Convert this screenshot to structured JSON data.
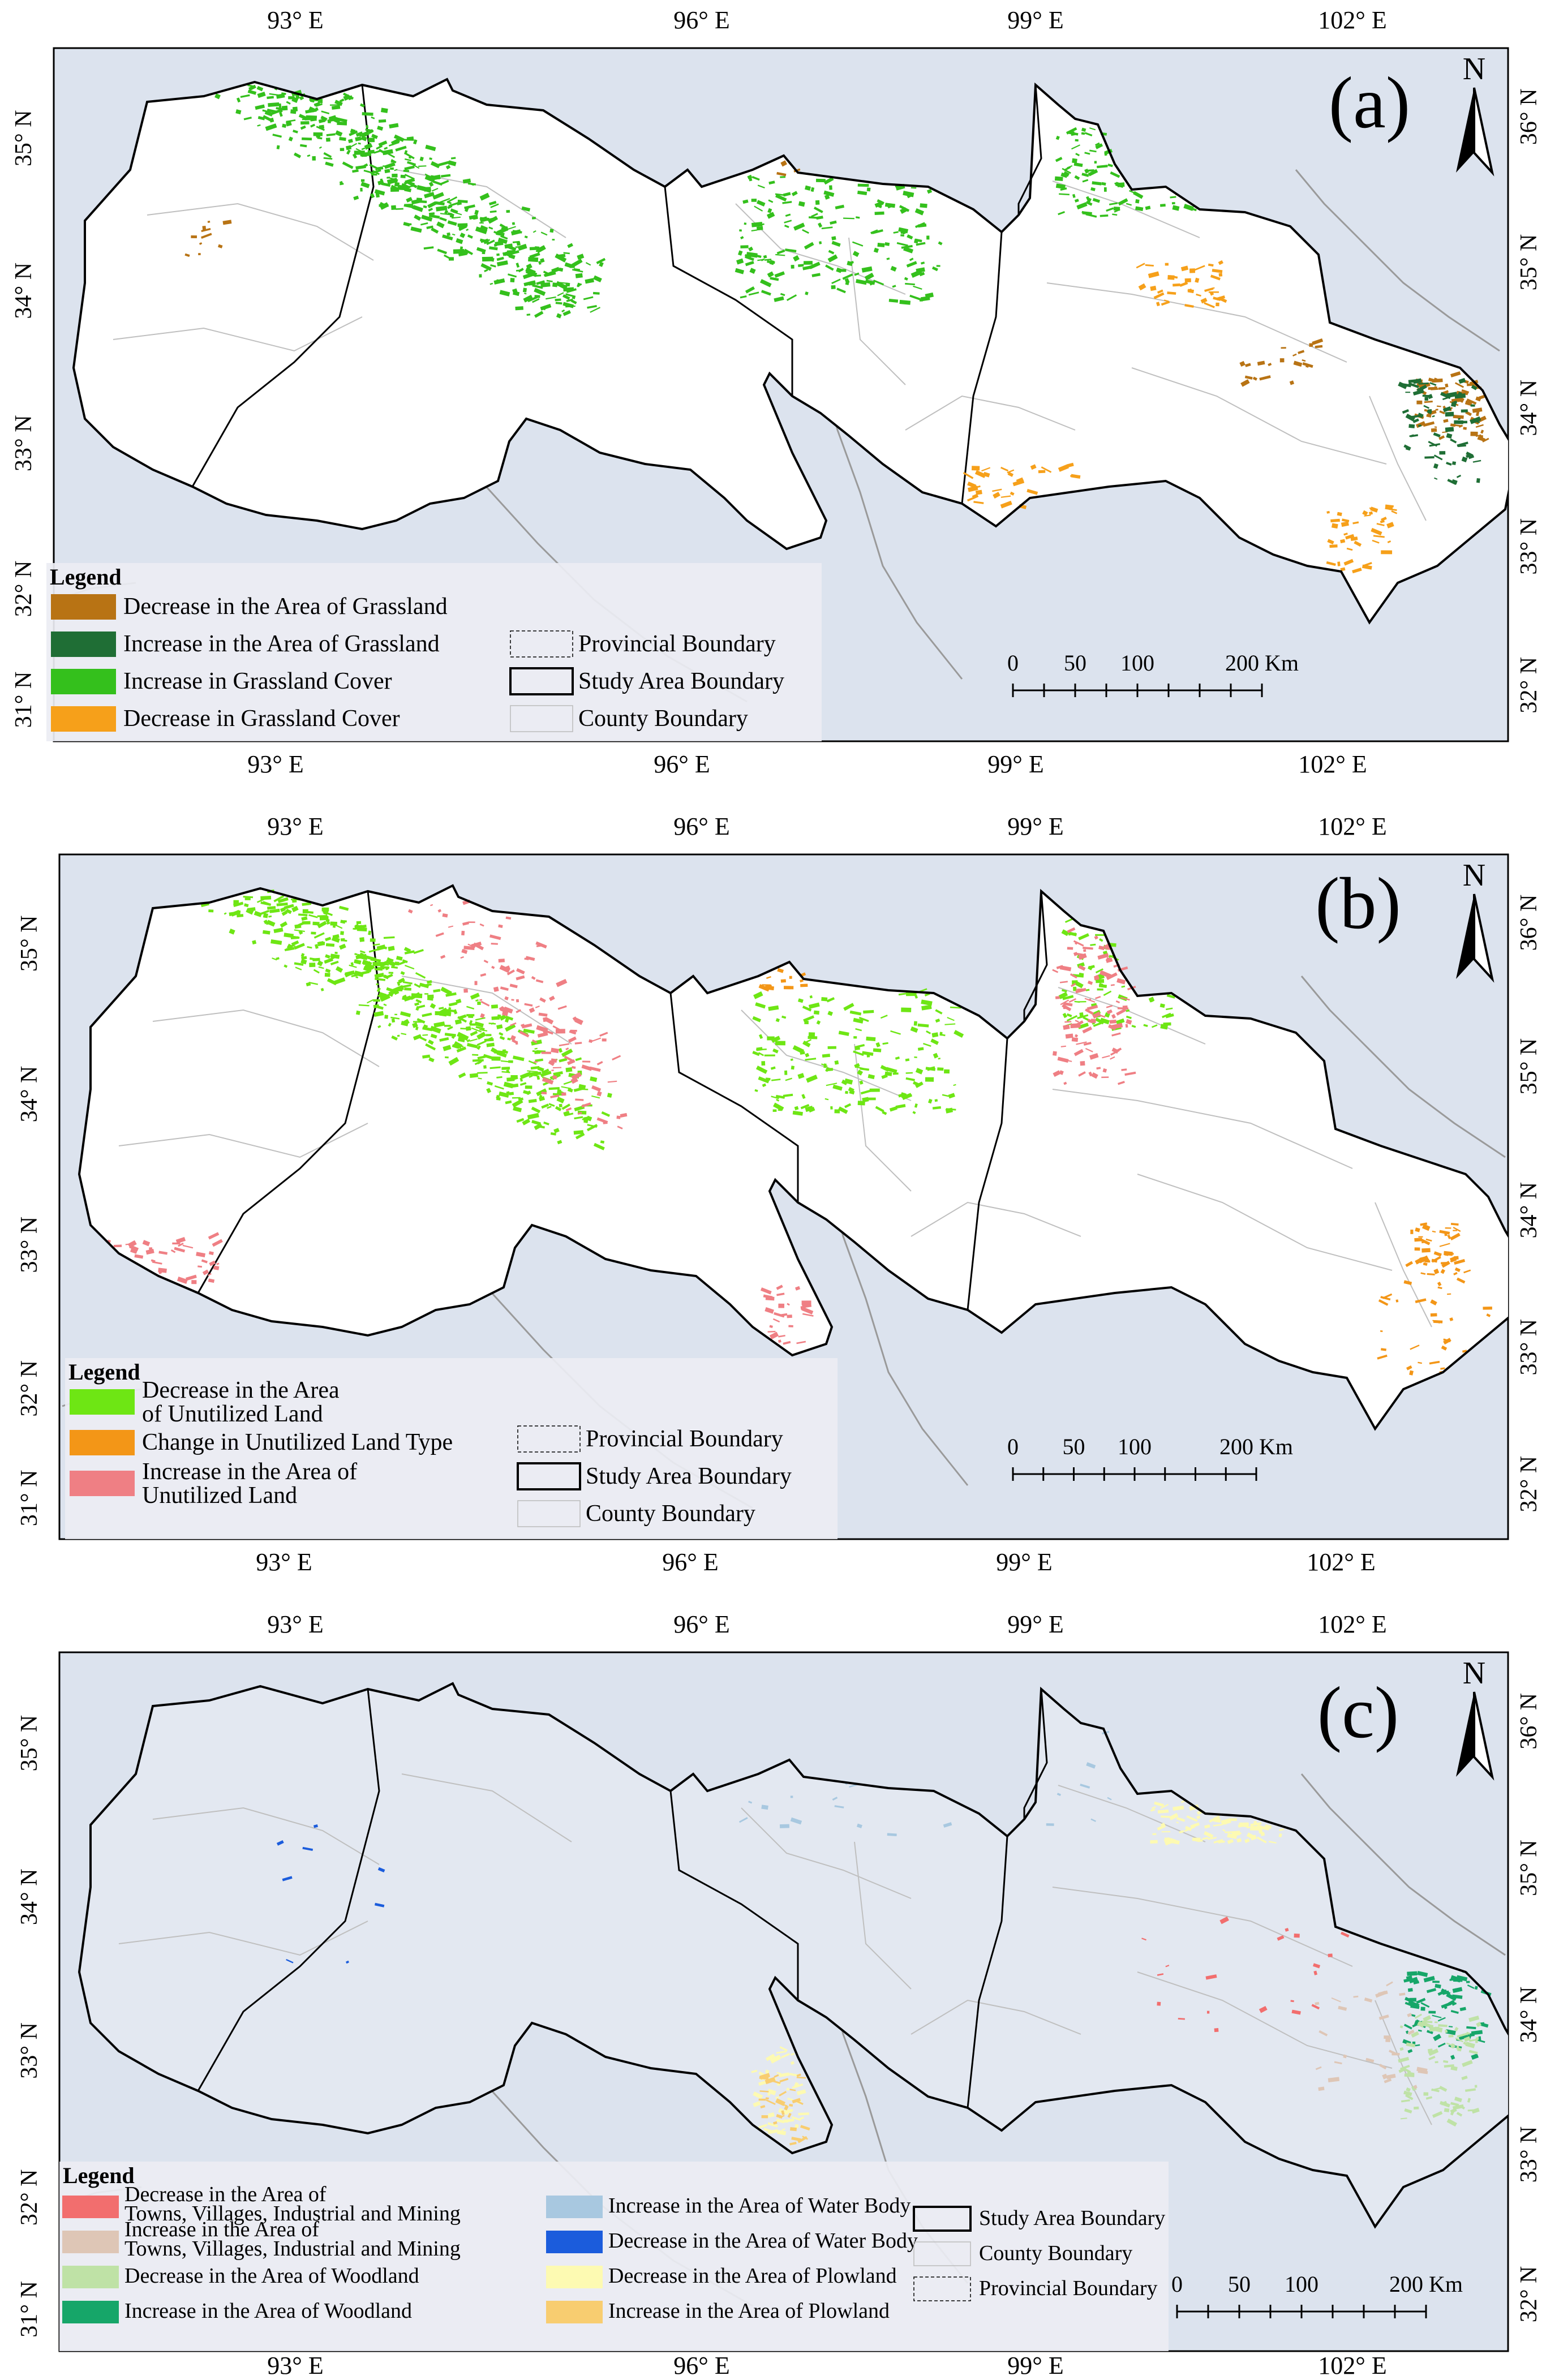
{
  "axes": {
    "lon_labels": [
      "93° E",
      "96° E",
      "99° E",
      "102° E"
    ],
    "lat_left": [
      "35° N",
      "34° N",
      "33° N",
      "32° N",
      "31° N"
    ],
    "lat_right": [
      "36° N",
      "35° N",
      "34° N",
      "33° N",
      "32° N"
    ]
  },
  "north_label": "N",
  "scale": {
    "ticks": [
      "0",
      "50",
      "100",
      "200 Km"
    ]
  },
  "colors": {
    "ocean": "#dce3ee",
    "land": "#ffffff",
    "boundary": "#000000",
    "county": "#bfbfbf",
    "provincial": "#9a9a9a"
  },
  "panels": [
    {
      "id": "a",
      "tag": "(a)",
      "legend": {
        "title": "Legend",
        "items": [
          {
            "label": "Decrease in the Area of Grassland",
            "color": "#b87314",
            "icon": "color-swatch"
          },
          {
            "label": "Increase in the Area of Grassland",
            "color": "#1f6e35",
            "icon": "color-swatch"
          },
          {
            "label": "Increase in Grassland Cover",
            "color": "#34c01c",
            "icon": "color-swatch"
          },
          {
            "label": "Decrease in Grassland Cover",
            "color": "#f6a01a",
            "icon": "color-swatch"
          }
        ],
        "boundaries": [
          {
            "label": "Provincial Boundary",
            "icon": "dashed-box-icon"
          },
          {
            "label": "Study Area Boundary",
            "icon": "solid-box-icon"
          },
          {
            "label": "County Boundary",
            "icon": "thin-box-icon"
          }
        ]
      }
    },
    {
      "id": "b",
      "tag": "(b)",
      "legend": {
        "title": "Legend",
        "items": [
          {
            "label": [
              "Decrease in the Area",
              "of Unutilized Land"
            ],
            "color": "#6ee614",
            "icon": "color-swatch"
          },
          {
            "label": "Change in Unutilized Land Type",
            "color": "#f39617",
            "icon": "color-swatch"
          },
          {
            "label": [
              "Increase in the Area of",
              "Unutilized Land"
            ],
            "color": "#ef7f84",
            "icon": "color-swatch"
          }
        ],
        "boundaries": [
          {
            "label": "Provincial Boundary",
            "icon": "dashed-box-icon"
          },
          {
            "label": "Study Area Boundary",
            "icon": "solid-box-icon"
          },
          {
            "label": "County Boundary",
            "icon": "thin-box-icon"
          }
        ]
      }
    },
    {
      "id": "c",
      "tag": "(c)",
      "legend": {
        "title": "Legend",
        "items": [
          {
            "label": [
              "Decrease in the Area of",
              "Towns, Villages, Industrial and Mining"
            ],
            "color": "#f26e6e",
            "icon": "color-swatch"
          },
          {
            "label": [
              "Increase in the Area of",
              "Towns, Villages, Industrial and Mining"
            ],
            "color": "#dec6b6",
            "icon": "color-swatch"
          },
          {
            "label": "Decrease in the Area of Woodland",
            "color": "#bfe2a6",
            "icon": "color-swatch"
          },
          {
            "label": "Increase in the Area of Woodland",
            "color": "#16a669",
            "icon": "color-swatch"
          },
          {
            "label": "Increase in the Area of Water Body",
            "color": "#a8c8e0",
            "icon": "color-swatch"
          },
          {
            "label": "Decrease in the Area of Water Body",
            "color": "#1b5cdc",
            "icon": "color-swatch"
          },
          {
            "label": "Decrease in the Area of Plowland",
            "color": "#fdfab2",
            "icon": "color-swatch"
          },
          {
            "label": "Increase in the Area of Plowland",
            "color": "#f8cd70",
            "icon": "color-swatch"
          }
        ],
        "boundaries": [
          {
            "label": "Study Area Boundary",
            "icon": "solid-box-icon"
          },
          {
            "label": "County Boundary",
            "icon": "thin-box-icon"
          },
          {
            "label": "Provincial Boundary",
            "icon": "dashed-box-icon"
          }
        ]
      }
    }
  ]
}
